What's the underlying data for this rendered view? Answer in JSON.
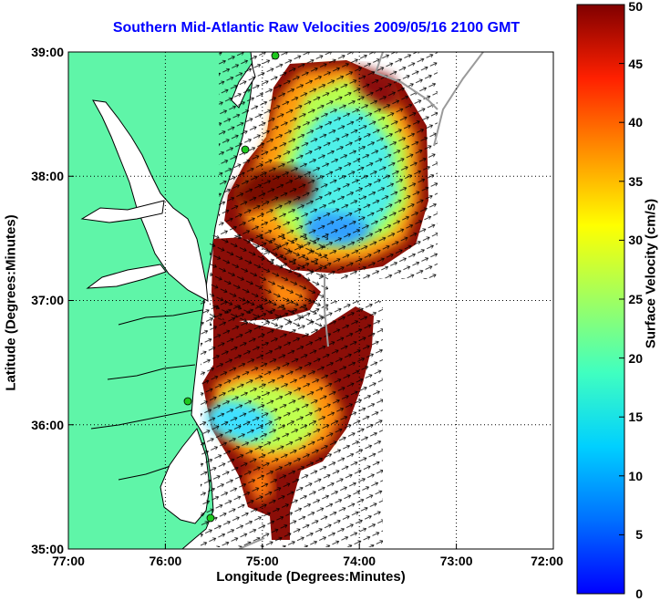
{
  "title": "Southern Mid-Atlantic Raw Velocities 2009/05/16 2100 GMT",
  "axes": {
    "xlabel": "Longitude (Degrees:Minutes)",
    "ylabel": "Latitude (Degrees:Minutes)",
    "xticks": [
      "77:00",
      "76:00",
      "75:00",
      "74:00",
      "73:00",
      "72:00"
    ],
    "yticks": [
      "39:00",
      "38:00",
      "37:00",
      "36:00",
      "35:00"
    ],
    "xlim": [
      -77,
      -72
    ],
    "ylim": [
      35,
      39
    ],
    "grid": true
  },
  "colorbar": {
    "label": "Surface Velocity (cm/s)",
    "ticks": [
      "0",
      "5",
      "10",
      "15",
      "20",
      "25",
      "30",
      "35",
      "40",
      "45",
      "50"
    ],
    "range": [
      0,
      50
    ],
    "colormap": "jet"
  },
  "colors": {
    "land": "#5ff5a8",
    "coastline": "#000000",
    "title": "#0000ff",
    "isobath": "#9a9a9a",
    "station": "#1ec81e"
  }
}
